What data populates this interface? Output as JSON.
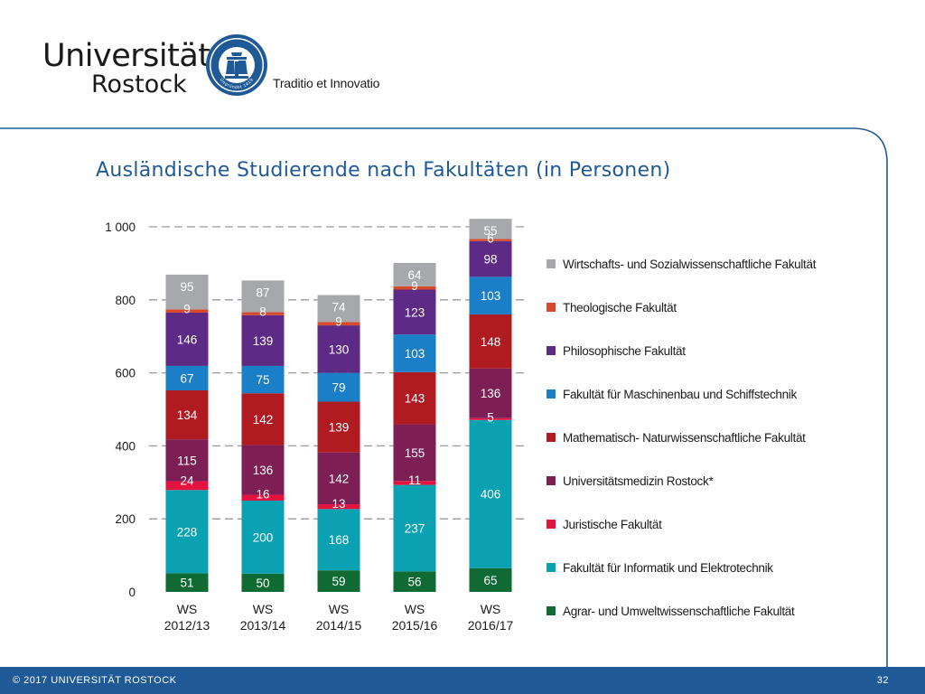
{
  "header": {
    "logo_line1": "Universität",
    "logo_line2": "Rostock",
    "seal_text": "Gegründet 1419",
    "motto": "Traditio et Innovatio"
  },
  "slide_title": "Ausländische Studierende nach Fakultäten (in Personen)",
  "footer": {
    "copyright": "© 2017 UNIVERSITÄT ROSTOCK",
    "page_number": "32"
  },
  "colors": {
    "accent": "#1f5a96",
    "text_on_dark": "#ffffff",
    "text_on_light": "#1a1a1a"
  },
  "chart_data": {
    "type": "bar",
    "stacked": true,
    "categories": [
      "WS\n2012/13",
      "WS\n2013/14",
      "WS\n2014/15",
      "WS\n2015/16",
      "WS\n2016/17"
    ],
    "y_ticks": [
      "0",
      "200",
      "400",
      "600",
      "800",
      "1 000"
    ],
    "ylim": [
      0,
      1000
    ],
    "grid": "dashed horizontal",
    "legend_position": "right",
    "series": [
      {
        "name": "Agrar- und Umweltwissenschaftliche Fakultät",
        "color": "#0f6b33",
        "values": [
          51,
          50,
          59,
          56,
          65
        ],
        "labels": [
          "51",
          "50",
          "59",
          "56",
          "65"
        ]
      },
      {
        "name": "Fakultät für Informatik und Elektrotechnik",
        "color": "#0aa2b2",
        "values": [
          228,
          200,
          168,
          237,
          406
        ],
        "labels": [
          "228",
          "200",
          "168",
          "237",
          "406"
        ]
      },
      {
        "name": "Juristische Fakultät",
        "color": "#e3123f",
        "values": [
          24,
          16,
          13,
          11,
          5
        ],
        "labels": [
          "24",
          "16",
          "13",
          "11",
          "5"
        ]
      },
      {
        "name": "Universitätsmedizin Rostock*",
        "color": "#7d1f55",
        "values": [
          115,
          136,
          142,
          155,
          136
        ],
        "labels": [
          "115",
          "136",
          "142",
          "155",
          "136"
        ]
      },
      {
        "name": "Mathematisch- Naturwissenschaftliche Fakultät",
        "color": "#b01b22",
        "values": [
          134,
          142,
          139,
          143,
          148
        ],
        "labels": [
          "134",
          "142",
          "139",
          "143",
          "148"
        ]
      },
      {
        "name": "Fakultät für Maschinenbau und Schiffstechnik",
        "color": "#1b7fc8",
        "values": [
          67,
          75,
          79,
          103,
          103
        ],
        "labels": [
          "67",
          "75",
          "79",
          "103",
          "103"
        ]
      },
      {
        "name": "Philosophische Fakultät",
        "color": "#5d2a86",
        "values": [
          146,
          139,
          130,
          123,
          98
        ],
        "labels": [
          "146",
          "139",
          "130",
          "123",
          "98"
        ]
      },
      {
        "name": "Theologische Fakultät",
        "color": "#d6492b",
        "values": [
          9,
          8,
          9,
          9,
          6
        ],
        "labels": [
          "9",
          "8",
          "9",
          "9",
          "6"
        ]
      },
      {
        "name": "Wirtschafts- und Sozialwissenschaftliche Fakultät",
        "color": "#a6a8ab",
        "values": [
          95,
          87,
          74,
          64,
          55
        ],
        "labels": [
          "95",
          "87",
          "74",
          "64",
          "55"
        ]
      }
    ]
  }
}
